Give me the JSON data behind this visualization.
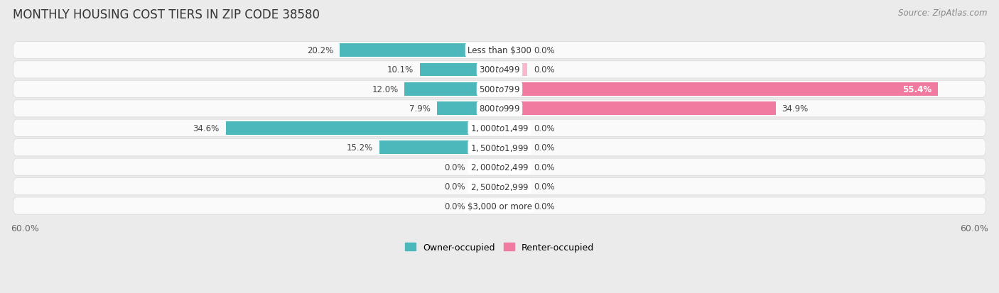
{
  "title": "MONTHLY HOUSING COST TIERS IN ZIP CODE 38580",
  "source": "Source: ZipAtlas.com",
  "categories": [
    "Less than $300",
    "$300 to $499",
    "$500 to $799",
    "$800 to $999",
    "$1,000 to $1,499",
    "$1,500 to $1,999",
    "$2,000 to $2,499",
    "$2,500 to $2,999",
    "$3,000 or more"
  ],
  "owner_values": [
    20.2,
    10.1,
    12.0,
    7.9,
    34.6,
    15.2,
    0.0,
    0.0,
    0.0
  ],
  "renter_values": [
    0.0,
    0.0,
    55.4,
    34.9,
    0.0,
    0.0,
    0.0,
    0.0,
    0.0
  ],
  "owner_color": "#4db8bc",
  "renter_color": "#f07aa0",
  "owner_color_zero": "#9ed8db",
  "renter_color_zero": "#f7b8cc",
  "background_color": "#ebebeb",
  "bar_background": "#fafafa",
  "xlim": 60.0,
  "zero_stub": 3.5,
  "title_fontsize": 12,
  "source_fontsize": 8.5,
  "bar_label_fontsize": 8.5,
  "category_fontsize": 8.5,
  "legend_fontsize": 9,
  "axis_label_fontsize": 9,
  "figsize": [
    14.06,
    4.14
  ],
  "dpi": 100
}
